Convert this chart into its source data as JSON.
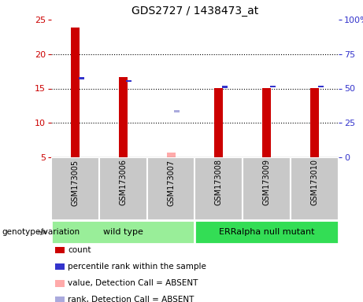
{
  "title": "GDS2727 / 1438473_at",
  "samples": [
    "GSM173005",
    "GSM173006",
    "GSM173007",
    "GSM173008",
    "GSM173009",
    "GSM173010"
  ],
  "red_bars": [
    23.9,
    16.6,
    null,
    15.1,
    15.1,
    15.1
  ],
  "blue_marks_y": [
    16.5,
    16.1,
    null,
    15.2,
    15.3,
    15.3
  ],
  "pink_bars": [
    null,
    null,
    5.7,
    null,
    null,
    null
  ],
  "lavender_marks_y": [
    null,
    null,
    11.7,
    null,
    null,
    null
  ],
  "ylim_left": [
    5,
    25
  ],
  "ylim_right": [
    0,
    100
  ],
  "yticks_left": [
    5,
    10,
    15,
    20,
    25
  ],
  "yticks_right": [
    0,
    25,
    50,
    75,
    100
  ],
  "ytick_labels_right": [
    "0",
    "25",
    "50",
    "75",
    "100%"
  ],
  "left_color": "#CC0000",
  "right_color": "#3333CC",
  "bar_width": 0.18,
  "mark_size": 0.3,
  "label_area_color": "#C8C8C8",
  "wt_color": "#99EE99",
  "er_color": "#33DD55",
  "legend_items": [
    {
      "label": "count",
      "color": "#CC0000"
    },
    {
      "label": "percentile rank within the sample",
      "color": "#3333CC"
    },
    {
      "label": "value, Detection Call = ABSENT",
      "color": "#FFAAAA"
    },
    {
      "label": "rank, Detection Call = ABSENT",
      "color": "#AAAADD"
    }
  ]
}
